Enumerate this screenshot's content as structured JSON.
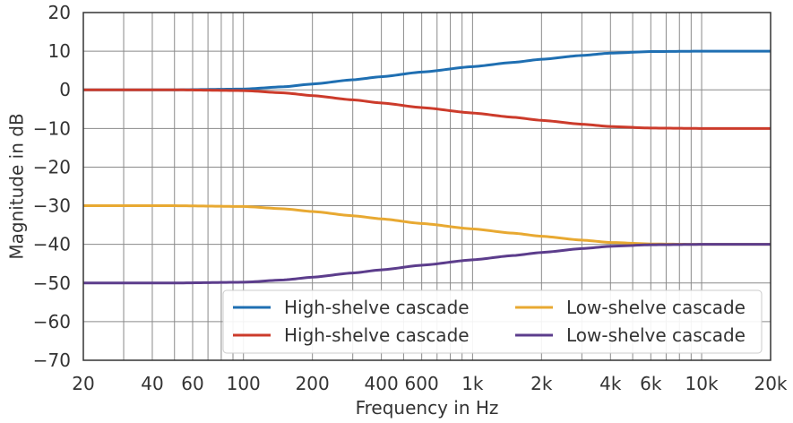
{
  "chart_data": {
    "type": "line",
    "xscale": "log",
    "xlabel": "Frequency in Hz",
    "ylabel": "Magnitude in dB",
    "xlim": [
      20,
      20000
    ],
    "ylim": [
      -70,
      20
    ],
    "grid": true,
    "legend_position": "lower-right",
    "legend_columns": 2,
    "xticks": [
      {
        "value": 20,
        "label": "20"
      },
      {
        "value": 40,
        "label": "40"
      },
      {
        "value": 60,
        "label": "60"
      },
      {
        "value": 100,
        "label": "100"
      },
      {
        "value": 200,
        "label": "200"
      },
      {
        "value": 400,
        "label": "400"
      },
      {
        "value": 600,
        "label": "600"
      },
      {
        "value": 1000,
        "label": "1k"
      },
      {
        "value": 2000,
        "label": "2k"
      },
      {
        "value": 4000,
        "label": "4k"
      },
      {
        "value": 6000,
        "label": "6k"
      },
      {
        "value": 10000,
        "label": "10k"
      },
      {
        "value": 20000,
        "label": "20k"
      }
    ],
    "yticks": [
      {
        "value": 20,
        "label": "20"
      },
      {
        "value": 10,
        "label": "10"
      },
      {
        "value": 0,
        "label": "0"
      },
      {
        "value": -10,
        "label": "−10"
      },
      {
        "value": -20,
        "label": "−20"
      },
      {
        "value": -30,
        "label": "−30"
      },
      {
        "value": -40,
        "label": "−40"
      },
      {
        "value": -50,
        "label": "−50"
      },
      {
        "value": -60,
        "label": "−60"
      },
      {
        "value": -70,
        "label": "−70"
      }
    ],
    "series": [
      {
        "name": "High-shelve cascade",
        "color": "#1f6fb2",
        "x": [
          20,
          50,
          100,
          150,
          200,
          300,
          400,
          600,
          1000,
          1500,
          2000,
          3000,
          4000,
          6000,
          10000,
          20000
        ],
        "y": [
          0,
          0,
          0.2,
          0.8,
          1.5,
          2.6,
          3.4,
          4.6,
          6.0,
          7.1,
          7.9,
          8.9,
          9.5,
          9.9,
          10,
          10
        ]
      },
      {
        "name": "High-shelve cascade",
        "color": "#cc3b2b",
        "x": [
          20,
          50,
          100,
          150,
          200,
          300,
          400,
          600,
          1000,
          1500,
          2000,
          3000,
          4000,
          6000,
          10000,
          20000
        ],
        "y": [
          0,
          0,
          -0.2,
          -0.8,
          -1.5,
          -2.6,
          -3.4,
          -4.6,
          -6.0,
          -7.1,
          -7.9,
          -8.9,
          -9.5,
          -9.9,
          -10,
          -10
        ]
      },
      {
        "name": "Low-shelve cascade",
        "color": "#e8a932",
        "x": [
          20,
          50,
          100,
          150,
          200,
          300,
          400,
          600,
          1000,
          1500,
          2000,
          3000,
          4000,
          6000,
          10000,
          20000
        ],
        "y": [
          -30,
          -30,
          -30.2,
          -30.8,
          -31.5,
          -32.6,
          -33.4,
          -34.6,
          -36.0,
          -37.1,
          -37.9,
          -38.9,
          -39.5,
          -39.9,
          -40,
          -40
        ]
      },
      {
        "name": "Low-shelve cascade",
        "color": "#5c3d8c",
        "x": [
          20,
          50,
          100,
          150,
          200,
          300,
          400,
          600,
          1000,
          1500,
          2000,
          3000,
          4000,
          6000,
          10000,
          20000
        ],
        "y": [
          -50,
          -50,
          -49.8,
          -49.2,
          -48.5,
          -47.4,
          -46.6,
          -45.4,
          -44.0,
          -42.9,
          -42.1,
          -41.1,
          -40.5,
          -40.1,
          -40,
          -40
        ]
      }
    ]
  }
}
